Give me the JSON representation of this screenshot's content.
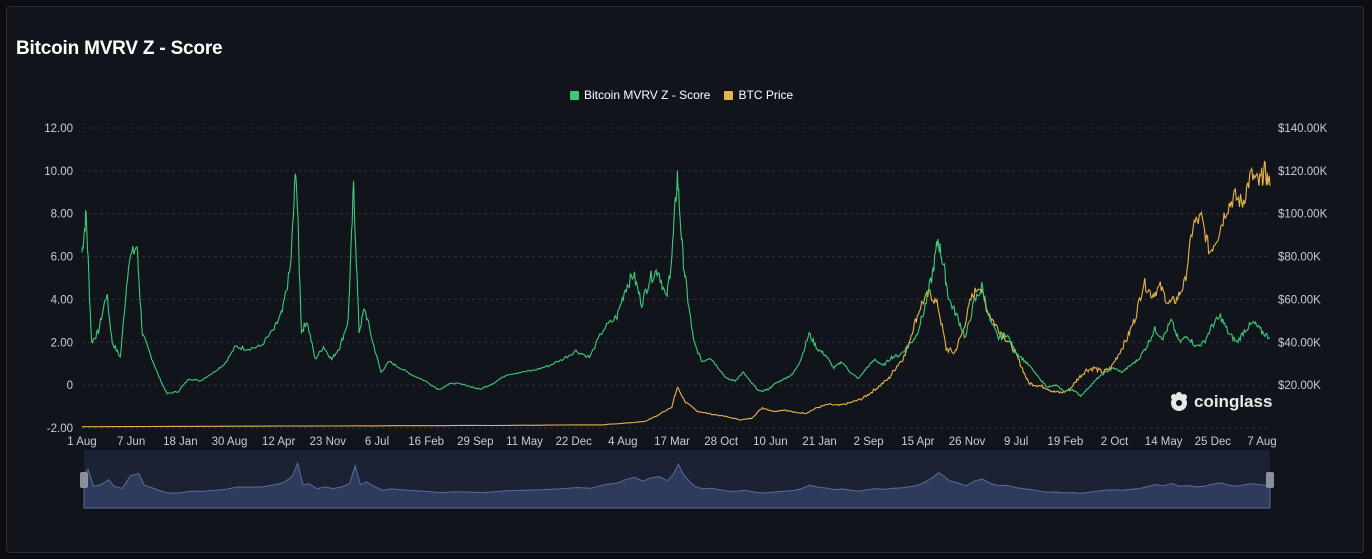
{
  "title": "Bitcoin MVRV Z - Score",
  "watermark": "coinglass",
  "colors": {
    "zscore": "#3ec97a",
    "price": "#e7b34a",
    "background": "#11141b",
    "grid": "#2c313c",
    "navigator": "#2e3b5c"
  },
  "legend": [
    {
      "name": "Bitcoin MVRV Z - Score",
      "color": "#3ec97a"
    },
    {
      "name": "BTC Price",
      "color": "#e7b34a"
    }
  ],
  "chart_data": {
    "type": "line",
    "title": "Bitcoin MVRV Z - Score",
    "x_tick_labels": [
      "1 Aug",
      "7 Jun",
      "18 Jan",
      "30 Aug",
      "12 Apr",
      "23 Nov",
      "6 Jul",
      "16 Feb",
      "29 Sep",
      "11 May",
      "22 Dec",
      "4 Aug",
      "17 Mar",
      "28 Oct",
      "10 Jun",
      "21 Jan",
      "2 Sep",
      "15 Apr",
      "26 Nov",
      "9 Jul",
      "19 Feb",
      "2 Oct",
      "14 May",
      "25 Dec",
      "7 Aug"
    ],
    "y_left_ticks": [
      "-2.00",
      "0",
      "2.00",
      "4.00",
      "6.00",
      "8.00",
      "10.00",
      "12.00"
    ],
    "y_right_ticks": [
      "$20.00K",
      "$40.00K",
      "$60.00K",
      "$80.00K",
      "$100.00K",
      "$120.00K",
      "$140.00K"
    ],
    "ylim_left": [
      -2,
      12
    ],
    "ylim_right": [
      0,
      140000
    ],
    "grid": true,
    "legend_position": "top-center",
    "series": [
      {
        "name": "Bitcoin MVRV Z - Score",
        "axis": "left",
        "values": [
          [
            0,
            6.2
          ],
          [
            0.15,
            8.0
          ],
          [
            0.35,
            2.0
          ],
          [
            0.6,
            2.5
          ],
          [
            0.9,
            4.3
          ],
          [
            1.1,
            2.0
          ],
          [
            1.4,
            1.3
          ],
          [
            1.7,
            5.8
          ],
          [
            2.0,
            6.5
          ],
          [
            2.2,
            2.4
          ],
          [
            2.5,
            1.4
          ],
          [
            2.8,
            0.4
          ],
          [
            3.1,
            -0.4
          ],
          [
            3.5,
            -0.3
          ],
          [
            3.9,
            0.3
          ],
          [
            4.3,
            0.2
          ],
          [
            4.8,
            0.6
          ],
          [
            5.2,
            1.0
          ],
          [
            5.6,
            1.8
          ],
          [
            6.0,
            1.7
          ],
          [
            6.5,
            1.8
          ],
          [
            7.0,
            2.6
          ],
          [
            7.3,
            3.4
          ],
          [
            7.6,
            5.5
          ],
          [
            7.8,
            10.2
          ],
          [
            8.0,
            2.5
          ],
          [
            8.2,
            3.0
          ],
          [
            8.5,
            1.2
          ],
          [
            8.8,
            1.8
          ],
          [
            9.1,
            1.2
          ],
          [
            9.4,
            1.8
          ],
          [
            9.7,
            3.0
          ],
          [
            9.9,
            9.2
          ],
          [
            10.1,
            2.5
          ],
          [
            10.3,
            3.6
          ],
          [
            10.6,
            2.0
          ],
          [
            10.9,
            0.6
          ],
          [
            11.2,
            1.1
          ],
          [
            11.6,
            0.8
          ],
          [
            12.0,
            0.5
          ],
          [
            12.5,
            0.2
          ],
          [
            13.0,
            -0.2
          ],
          [
            13.5,
            0.1
          ],
          [
            14.0,
            0.0
          ],
          [
            14.5,
            -0.2
          ],
          [
            15.0,
            0.1
          ],
          [
            15.5,
            0.5
          ],
          [
            16.0,
            0.6
          ],
          [
            16.5,
            0.7
          ],
          [
            17.0,
            0.9
          ],
          [
            17.5,
            1.2
          ],
          [
            18.0,
            1.6
          ],
          [
            18.5,
            1.3
          ],
          [
            19.0,
            2.6
          ],
          [
            19.5,
            3.2
          ],
          [
            19.8,
            4.5
          ],
          [
            20.1,
            5.2
          ],
          [
            20.4,
            3.8
          ],
          [
            20.7,
            5.0
          ],
          [
            21.0,
            5.4
          ],
          [
            21.3,
            4.0
          ],
          [
            21.5,
            6.0
          ],
          [
            21.7,
            9.8
          ],
          [
            21.9,
            6.0
          ],
          [
            22.1,
            3.8
          ],
          [
            22.3,
            2.0
          ],
          [
            22.6,
            1.1
          ],
          [
            22.9,
            1.3
          ],
          [
            23.2,
            0.8
          ],
          [
            23.5,
            0.3
          ],
          [
            23.8,
            0.2
          ],
          [
            24.1,
            0.6
          ],
          [
            24.4,
            0.1
          ],
          [
            24.7,
            -0.3
          ],
          [
            25.0,
            -0.2
          ],
          [
            25.3,
            0.1
          ],
          [
            25.6,
            0.3
          ],
          [
            25.9,
            0.5
          ],
          [
            26.2,
            1.2
          ],
          [
            26.5,
            2.4
          ],
          [
            26.8,
            1.7
          ],
          [
            27.1,
            1.4
          ],
          [
            27.4,
            0.8
          ],
          [
            27.7,
            1.1
          ],
          [
            28.0,
            0.6
          ],
          [
            28.3,
            0.3
          ],
          [
            28.6,
            0.8
          ],
          [
            28.9,
            1.2
          ],
          [
            29.2,
            0.9
          ],
          [
            29.5,
            1.3
          ],
          [
            29.8,
            1.4
          ],
          [
            30.1,
            1.8
          ],
          [
            30.4,
            2.3
          ],
          [
            30.7,
            3.5
          ],
          [
            31.0,
            5.2
          ],
          [
            31.2,
            6.8
          ],
          [
            31.4,
            5.6
          ],
          [
            31.6,
            4.0
          ],
          [
            31.9,
            3.2
          ],
          [
            32.2,
            2.2
          ],
          [
            32.5,
            3.8
          ],
          [
            32.8,
            4.6
          ],
          [
            33.1,
            3.0
          ],
          [
            33.4,
            2.2
          ],
          [
            33.7,
            2.4
          ],
          [
            34.0,
            1.6
          ],
          [
            34.3,
            1.2
          ],
          [
            34.6,
            0.8
          ],
          [
            34.9,
            0.3
          ],
          [
            35.2,
            -0.1
          ],
          [
            35.5,
            0.0
          ],
          [
            35.8,
            -0.3
          ],
          [
            36.1,
            -0.2
          ],
          [
            36.4,
            -0.5
          ],
          [
            36.7,
            -0.1
          ],
          [
            37.0,
            0.3
          ],
          [
            37.3,
            0.6
          ],
          [
            37.6,
            0.8
          ],
          [
            37.9,
            0.6
          ],
          [
            38.2,
            0.9
          ],
          [
            38.5,
            1.2
          ],
          [
            38.8,
            1.8
          ],
          [
            39.1,
            2.6
          ],
          [
            39.4,
            2.2
          ],
          [
            39.7,
            3.0
          ],
          [
            40.0,
            2.0
          ],
          [
            40.3,
            2.3
          ],
          [
            40.6,
            1.8
          ],
          [
            40.9,
            2.0
          ],
          [
            41.2,
            2.8
          ],
          [
            41.5,
            3.2
          ],
          [
            41.8,
            2.4
          ],
          [
            42.1,
            2.0
          ],
          [
            42.4,
            2.6
          ],
          [
            42.7,
            2.9
          ],
          [
            43.0,
            2.5
          ],
          [
            43.3,
            2.2
          ]
        ]
      },
      {
        "name": "BTC Price",
        "axis": "right",
        "values": [
          [
            0,
            600
          ],
          [
            5,
            800
          ],
          [
            10,
            1000
          ],
          [
            15,
            1200
          ],
          [
            19,
            1500
          ],
          [
            20.5,
            3000
          ],
          [
            21.0,
            6000
          ],
          [
            21.5,
            10000
          ],
          [
            21.7,
            19000
          ],
          [
            22.0,
            12000
          ],
          [
            22.4,
            8000
          ],
          [
            22.8,
            6800
          ],
          [
            23.4,
            5500
          ],
          [
            24.0,
            3800
          ],
          [
            24.4,
            4500
          ],
          [
            24.8,
            9500
          ],
          [
            25.2,
            7800
          ],
          [
            25.6,
            8500
          ],
          [
            26.0,
            7200
          ],
          [
            26.4,
            7000
          ],
          [
            26.8,
            9500
          ],
          [
            27.2,
            11000
          ],
          [
            27.6,
            10500
          ],
          [
            28.0,
            11800
          ],
          [
            28.4,
            13500
          ],
          [
            28.7,
            16000
          ],
          [
            29.0,
            19000
          ],
          [
            29.4,
            23000
          ],
          [
            29.7,
            29000
          ],
          [
            30.0,
            34000
          ],
          [
            30.3,
            47000
          ],
          [
            30.6,
            58000
          ],
          [
            30.9,
            63000
          ],
          [
            31.2,
            57000
          ],
          [
            31.5,
            37000
          ],
          [
            31.8,
            35000
          ],
          [
            32.1,
            45000
          ],
          [
            32.4,
            60000
          ],
          [
            32.7,
            67000
          ],
          [
            33.0,
            55000
          ],
          [
            33.3,
            48000
          ],
          [
            33.6,
            43000
          ],
          [
            33.9,
            38000
          ],
          [
            34.2,
            30000
          ],
          [
            34.5,
            21000
          ],
          [
            34.8,
            20000
          ],
          [
            35.1,
            19000
          ],
          [
            35.4,
            17000
          ],
          [
            35.7,
            16500
          ],
          [
            36.0,
            18000
          ],
          [
            36.3,
            23000
          ],
          [
            36.6,
            27000
          ],
          [
            36.9,
            28000
          ],
          [
            37.2,
            26000
          ],
          [
            37.5,
            28000
          ],
          [
            37.8,
            35000
          ],
          [
            38.1,
            42000
          ],
          [
            38.4,
            52000
          ],
          [
            38.7,
            68000
          ],
          [
            39.0,
            62000
          ],
          [
            39.3,
            66000
          ],
          [
            39.6,
            58000
          ],
          [
            39.9,
            60000
          ],
          [
            40.2,
            68000
          ],
          [
            40.5,
            95000
          ],
          [
            40.8,
            98000
          ],
          [
            41.1,
            82000
          ],
          [
            41.4,
            90000
          ],
          [
            41.7,
            102000
          ],
          [
            42.0,
            108000
          ],
          [
            42.3,
            105000
          ],
          [
            42.6,
            118000
          ],
          [
            42.9,
            114000
          ],
          [
            43.1,
            120000
          ],
          [
            43.3,
            113000
          ]
        ]
      }
    ]
  }
}
